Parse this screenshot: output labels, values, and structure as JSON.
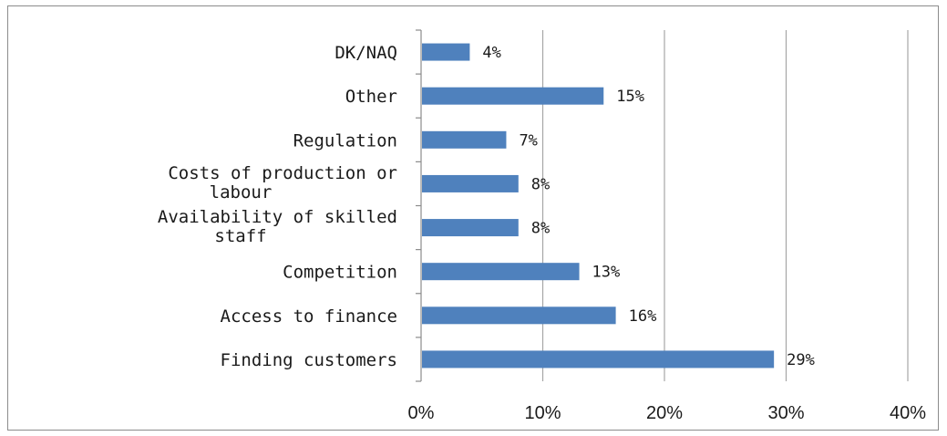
{
  "chart_data": {
    "type": "bar",
    "orientation": "horizontal",
    "categories": [
      [
        "DK/NAQ"
      ],
      [
        "Other"
      ],
      [
        "Regulation"
      ],
      [
        "Costs of production or",
        "labour"
      ],
      [
        "Availability of skilled",
        "staff"
      ],
      [
        "Competition"
      ],
      [
        "Access to finance"
      ],
      [
        "Finding customers"
      ]
    ],
    "values": [
      4,
      15,
      7,
      8,
      8,
      13,
      16,
      29
    ],
    "data_labels": [
      "4%",
      "15%",
      "7%",
      "8%",
      "8%",
      "13%",
      "16%",
      "29%"
    ],
    "x_ticks": [
      "0%",
      "10%",
      "20%",
      "30%",
      "40%"
    ],
    "xlim": [
      0,
      40
    ],
    "title": "",
    "xlabel": "",
    "ylabel": "",
    "grid": "vertical",
    "legend": "none",
    "bar_color": "#4f81bd"
  }
}
